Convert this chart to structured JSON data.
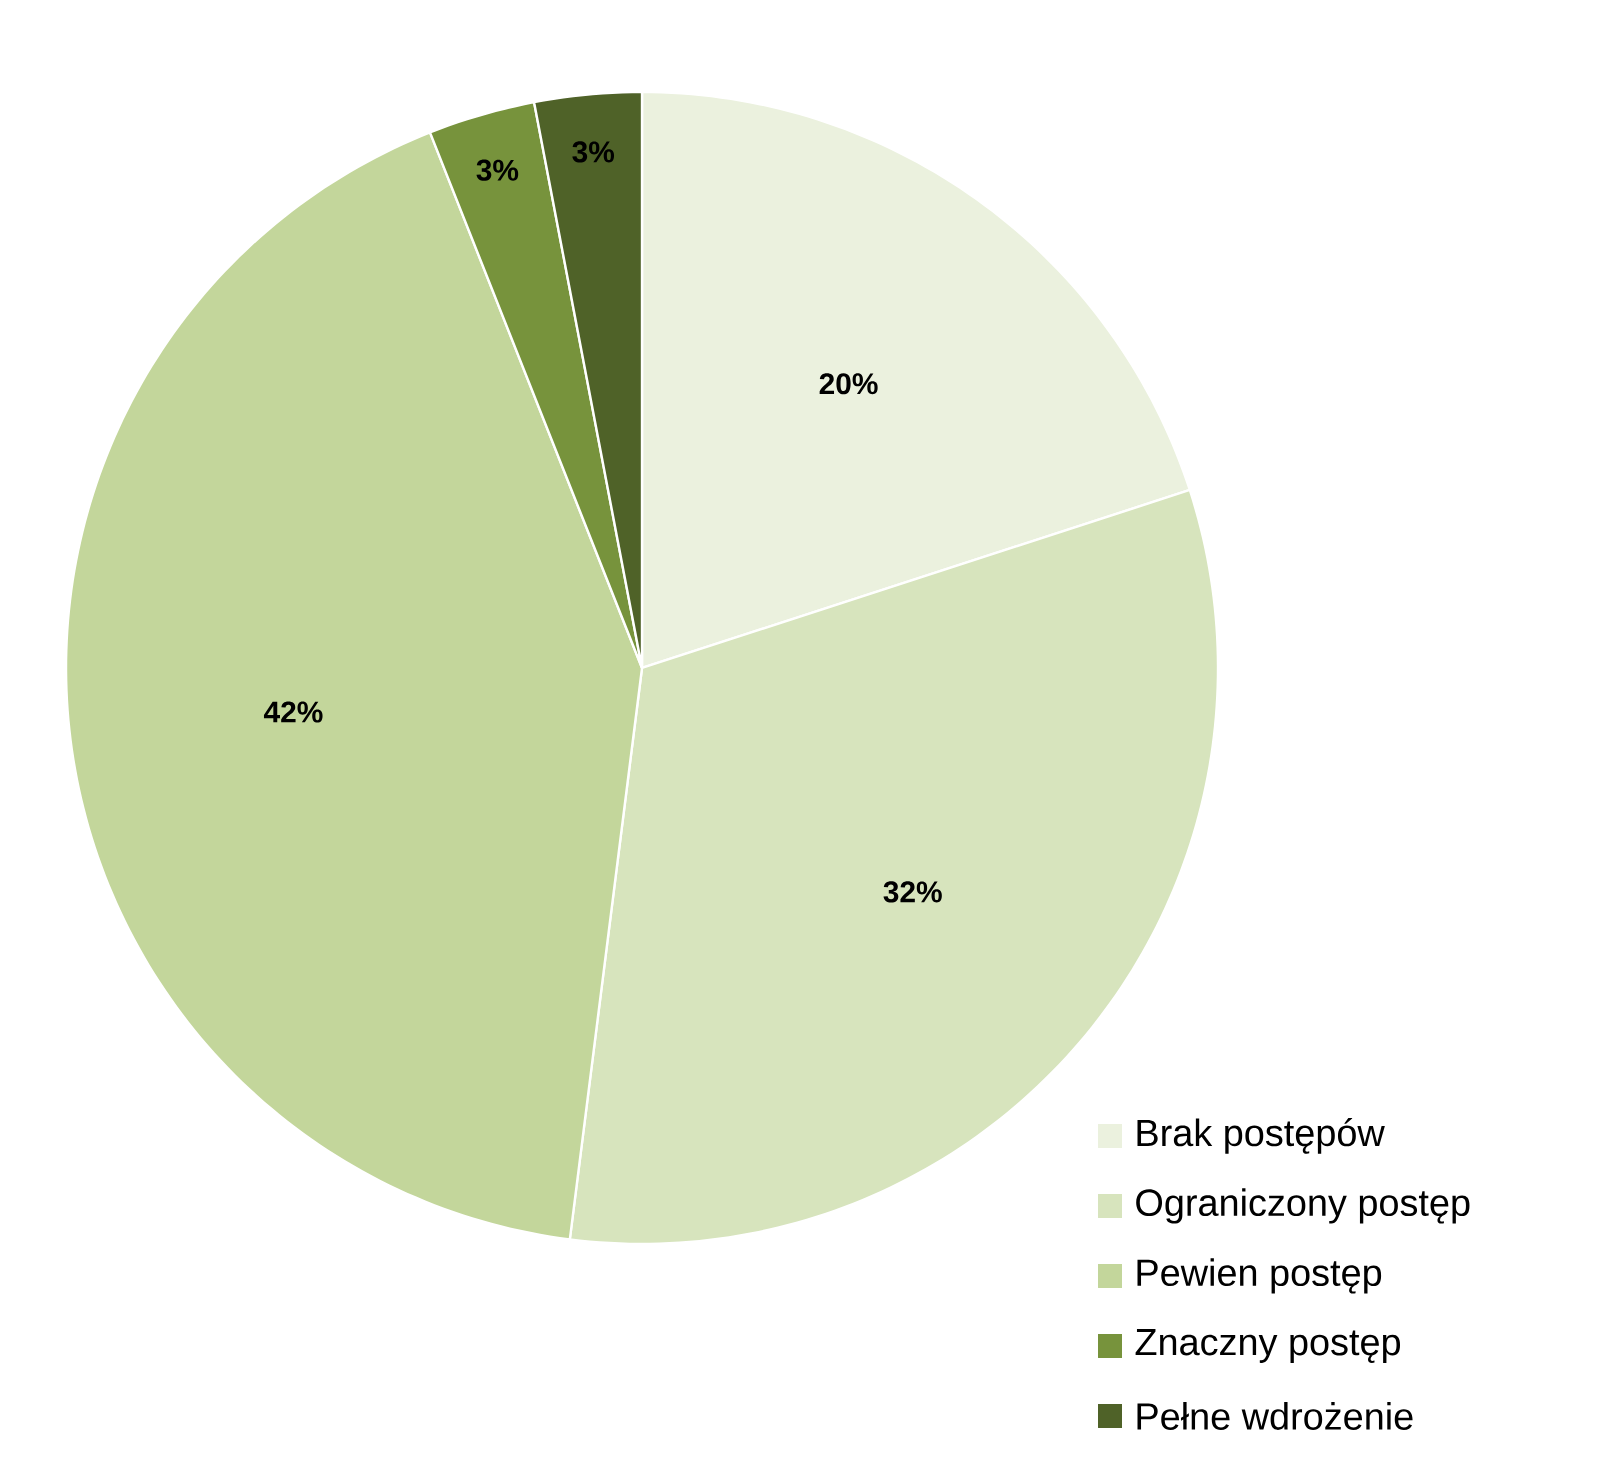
{
  "chart_data": {
    "type": "pie",
    "categories": [
      "Brak postępów",
      "Ograniczony postęp",
      "Pewien postęp",
      "Znaczny postęp",
      "Pełne wdrożenie"
    ],
    "values": [
      20,
      32,
      42,
      3,
      3
    ],
    "colors": [
      "#ebf1de",
      "#d7e4bd",
      "#c3d69b",
      "#77933c",
      "#4f6228"
    ],
    "value_labels": [
      "20%",
      "32%",
      "42%",
      "3%",
      "3%"
    ],
    "legend": "bottom right"
  }
}
